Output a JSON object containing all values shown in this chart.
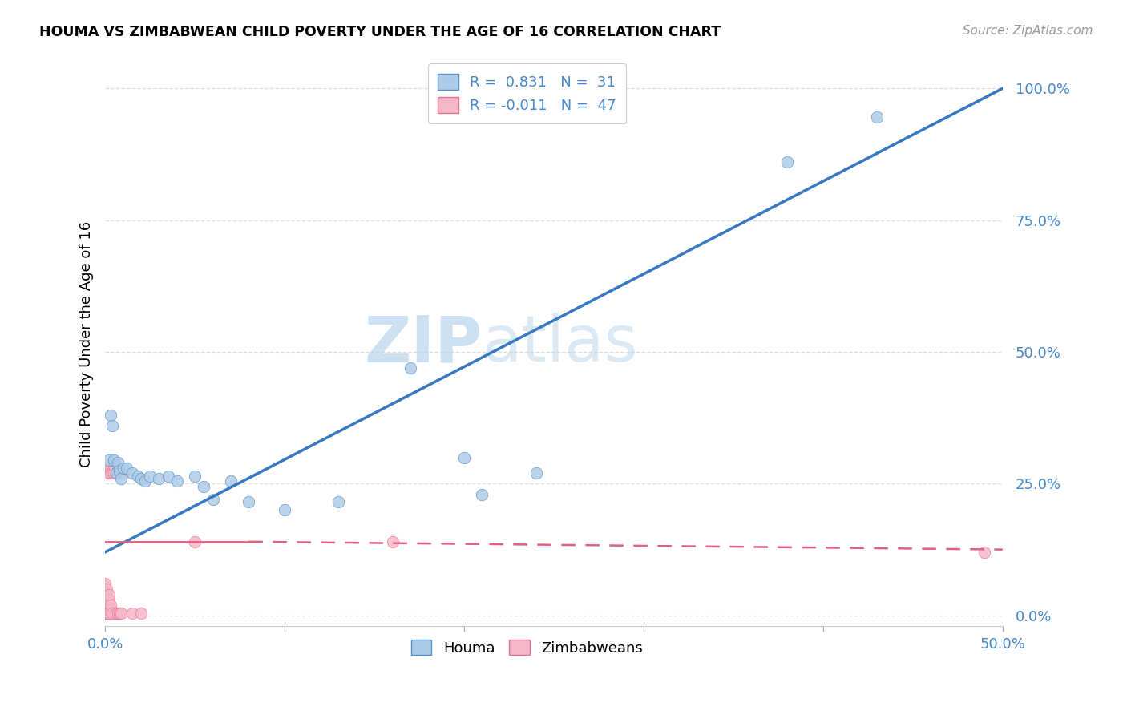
{
  "title": "HOUMA VS ZIMBABWEAN CHILD POVERTY UNDER THE AGE OF 16 CORRELATION CHART",
  "source": "Source: ZipAtlas.com",
  "ylabel": "Child Poverty Under the Age of 16",
  "xlim": [
    0.0,
    0.5
  ],
  "ylim": [
    -0.02,
    1.05
  ],
  "xticks": [
    0.0,
    0.1,
    0.2,
    0.3,
    0.4,
    0.5
  ],
  "xtick_labels_show": [
    "0.0%",
    "",
    "",
    "",
    "",
    "50.0%"
  ],
  "yticks": [
    0.0,
    0.25,
    0.5,
    0.75,
    1.0
  ],
  "ytick_labels": [
    "0.0%",
    "25.0%",
    "50.0%",
    "75.0%",
    "100.0%"
  ],
  "houma_color": "#aecce8",
  "zimbabwean_color": "#f5b8c8",
  "houma_edge_color": "#5590c8",
  "zimbabwean_edge_color": "#e87090",
  "houma_line_color": "#3878c0",
  "zimbabwean_line_color": "#e06080",
  "houma_R": 0.831,
  "houma_N": 31,
  "zimbabwean_R": -0.011,
  "zimbabwean_N": 47,
  "watermark_zip": "ZIP",
  "watermark_atlas": "atlas",
  "background_color": "#ffffff",
  "axis_color": "#4488cc",
  "grid_color": "#dddddd",
  "houma_scatter": [
    [
      0.002,
      0.295
    ],
    [
      0.003,
      0.38
    ],
    [
      0.004,
      0.36
    ],
    [
      0.005,
      0.295
    ],
    [
      0.006,
      0.27
    ],
    [
      0.007,
      0.29
    ],
    [
      0.008,
      0.275
    ],
    [
      0.009,
      0.26
    ],
    [
      0.01,
      0.28
    ],
    [
      0.012,
      0.28
    ],
    [
      0.015,
      0.27
    ],
    [
      0.018,
      0.265
    ],
    [
      0.02,
      0.26
    ],
    [
      0.022,
      0.255
    ],
    [
      0.025,
      0.265
    ],
    [
      0.03,
      0.26
    ],
    [
      0.035,
      0.265
    ],
    [
      0.04,
      0.255
    ],
    [
      0.05,
      0.265
    ],
    [
      0.055,
      0.245
    ],
    [
      0.06,
      0.22
    ],
    [
      0.07,
      0.255
    ],
    [
      0.08,
      0.215
    ],
    [
      0.1,
      0.2
    ],
    [
      0.13,
      0.215
    ],
    [
      0.17,
      0.47
    ],
    [
      0.2,
      0.3
    ],
    [
      0.21,
      0.23
    ],
    [
      0.24,
      0.27
    ],
    [
      0.38,
      0.86
    ],
    [
      0.43,
      0.945
    ]
  ],
  "zimbabwean_scatter": [
    [
      0.0,
      0.005
    ],
    [
      0.0,
      0.01
    ],
    [
      0.0,
      0.015
    ],
    [
      0.0,
      0.02
    ],
    [
      0.0,
      0.025
    ],
    [
      0.0,
      0.03
    ],
    [
      0.0,
      0.035
    ],
    [
      0.0,
      0.04
    ],
    [
      0.0,
      0.045
    ],
    [
      0.0,
      0.05
    ],
    [
      0.0,
      0.055
    ],
    [
      0.0,
      0.06
    ],
    [
      0.001,
      0.005
    ],
    [
      0.001,
      0.01
    ],
    [
      0.001,
      0.02
    ],
    [
      0.001,
      0.03
    ],
    [
      0.001,
      0.04
    ],
    [
      0.001,
      0.05
    ],
    [
      0.002,
      0.005
    ],
    [
      0.002,
      0.01
    ],
    [
      0.002,
      0.02
    ],
    [
      0.002,
      0.03
    ],
    [
      0.002,
      0.04
    ],
    [
      0.002,
      0.27
    ],
    [
      0.002,
      0.285
    ],
    [
      0.003,
      0.01
    ],
    [
      0.003,
      0.02
    ],
    [
      0.003,
      0.27
    ],
    [
      0.003,
      0.28
    ],
    [
      0.004,
      0.005
    ],
    [
      0.004,
      0.27
    ],
    [
      0.004,
      0.285
    ],
    [
      0.005,
      0.27
    ],
    [
      0.005,
      0.285
    ],
    [
      0.006,
      0.005
    ],
    [
      0.006,
      0.27
    ],
    [
      0.007,
      0.005
    ],
    [
      0.007,
      0.27
    ],
    [
      0.008,
      0.005
    ],
    [
      0.008,
      0.27
    ],
    [
      0.009,
      0.005
    ],
    [
      0.01,
      0.27
    ],
    [
      0.015,
      0.005
    ],
    [
      0.02,
      0.005
    ],
    [
      0.05,
      0.14
    ],
    [
      0.16,
      0.14
    ],
    [
      0.49,
      0.12
    ]
  ],
  "houma_line": [
    [
      0.0,
      0.12
    ],
    [
      0.5,
      1.0
    ]
  ],
  "zimbabwean_line_solid": [
    [
      0.0,
      0.14
    ],
    [
      0.08,
      0.14
    ]
  ],
  "zimbabwean_line_dashed": [
    [
      0.08,
      0.14
    ],
    [
      0.5,
      0.125
    ]
  ]
}
